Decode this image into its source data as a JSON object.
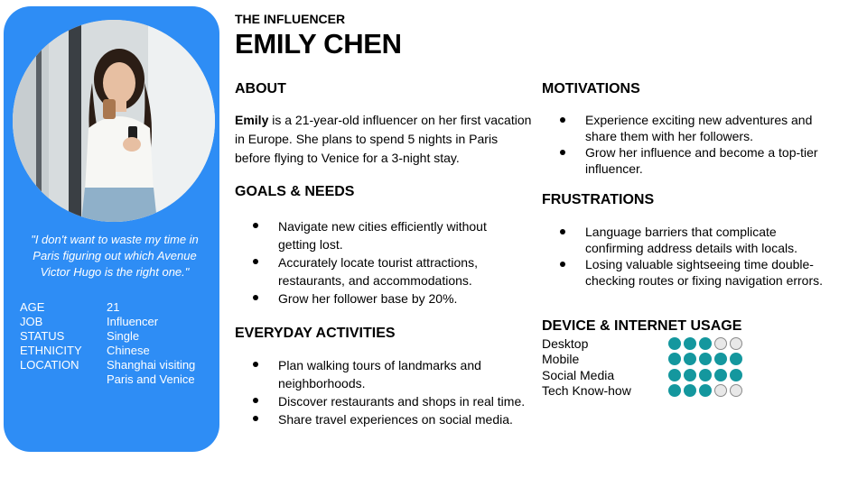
{
  "profile": {
    "role": "THE INFLUENCER",
    "name": "EMILY CHEN",
    "quote": "\"I don't want to waste my time in Paris figuring out which Avenue Victor Hugo is the right one.\"",
    "demographics": [
      {
        "key": "AGE",
        "value": "21"
      },
      {
        "key": "JOB",
        "value": "Influencer"
      },
      {
        "key": "STATUS",
        "value": "Single"
      },
      {
        "key": "ETHNICITY",
        "value": "Chinese"
      },
      {
        "key": "LOCATION",
        "value": "Shanghai visiting Paris and Venice"
      }
    ]
  },
  "about": {
    "heading": "ABOUT",
    "name_bold": "Emily",
    "text": " is a 21-year-old influencer on her first vacation in Europe. She plans to spend 5 nights in Paris before flying to Venice for a 3-night stay."
  },
  "goals": {
    "heading": "GOALS & NEEDS",
    "items": [
      "Navigate new cities efficiently without getting lost.",
      "Accurately locate tourist attractions, restaurants, and accommodations.",
      "Grow her follower base by 20%."
    ]
  },
  "activities": {
    "heading": "EVERYDAY ACTIVITIES",
    "items": [
      "Plan walking tours of landmarks and neighborhoods.",
      "Discover restaurants and shops in real time.",
      "Share travel experiences on social media."
    ]
  },
  "motivations": {
    "heading": "MOTIVATIONS",
    "items": [
      "Experience exciting new adventures and share them with her followers.",
      "Grow her influence and become a top-tier influencer."
    ]
  },
  "frustrations": {
    "heading": "FRUSTRATIONS",
    "items": [
      "Language barriers that complicate confirming address details with locals.",
      "Losing valuable sightseeing time double-checking routes or fixing navigation errors."
    ]
  },
  "usage": {
    "heading": "DEVICE & INTERNET USAGE",
    "max": 5,
    "rows": [
      {
        "label": "Desktop",
        "level": 3
      },
      {
        "label": "Mobile",
        "level": 5
      },
      {
        "label": "Social Media",
        "level": 5
      },
      {
        "label": "Tech Know-how",
        "level": 3
      }
    ]
  },
  "colors": {
    "sidebar": "#2e8df5",
    "dot_filled": "#14979e",
    "dot_empty": "#e8e8e8"
  }
}
